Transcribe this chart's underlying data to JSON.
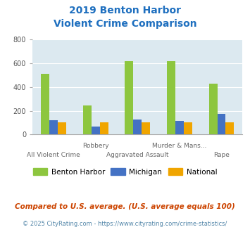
{
  "title_line1": "2019 Benton Harbor",
  "title_line2": "Violent Crime Comparison",
  "categories": [
    "All Violent Crime",
    "Robbery",
    "Aggravated Assault",
    "Murder & Mans...",
    "Rape"
  ],
  "benton_harbor": [
    510,
    245,
    615,
    615,
    430
  ],
  "michigan": [
    120,
    65,
    125,
    115,
    175
  ],
  "national": [
    100,
    100,
    100,
    100,
    100
  ],
  "color_bh": "#8dc63f",
  "color_mi": "#4472c4",
  "color_nat": "#f0a500",
  "ylim": [
    0,
    800
  ],
  "yticks": [
    0,
    200,
    400,
    600,
    800
  ],
  "bg_color": "#dce9f0",
  "title_color": "#1e6fbf",
  "legend_labels": [
    "Benton Harbor",
    "Michigan",
    "National"
  ],
  "footnote1": "Compared to U.S. average. (U.S. average equals 100)",
  "footnote2": "© 2025 CityRating.com - https://www.cityrating.com/crime-statistics/",
  "footnote1_color": "#cc4400",
  "footnote2_color": "#5588aa",
  "axis_color": "#aaaaaa"
}
